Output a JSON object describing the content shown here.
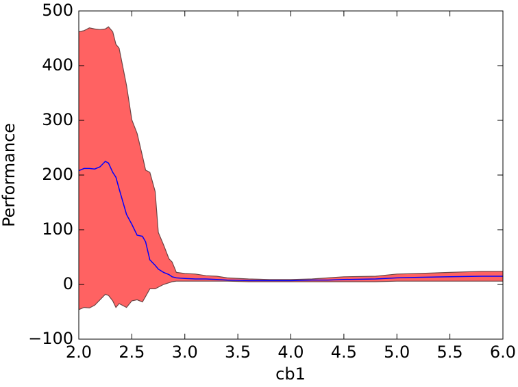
{
  "chart_data": {
    "type": "band",
    "xlabel": "cb1",
    "ylabel": "Performance",
    "x": [
      2.0,
      2.05,
      2.1,
      2.15,
      2.2,
      2.25,
      2.28,
      2.32,
      2.35,
      2.38,
      2.45,
      2.5,
      2.55,
      2.6,
      2.63,
      2.67,
      2.72,
      2.75,
      2.8,
      2.85,
      2.88,
      2.92,
      3.0,
      3.1,
      3.2,
      3.3,
      3.4,
      3.6,
      3.8,
      4.0,
      4.2,
      4.35,
      4.5,
      4.8,
      5.0,
      5.2,
      5.5,
      5.8,
      6.0
    ],
    "values": [
      208,
      212,
      212,
      211,
      215,
      225,
      222,
      205,
      196,
      175,
      128,
      110,
      90,
      88,
      78,
      45,
      35,
      28,
      22,
      18,
      14,
      12,
      11,
      10,
      10,
      9,
      8,
      7,
      7,
      7,
      8,
      8,
      9,
      10,
      12,
      13,
      14,
      15,
      15
    ],
    "upper": [
      462,
      464,
      469,
      467,
      466,
      467,
      471,
      462,
      439,
      432,
      364,
      301,
      276,
      235,
      209,
      205,
      170,
      95,
      72,
      47,
      41,
      22,
      20,
      19,
      16,
      15,
      12,
      10,
      9,
      9,
      10,
      12,
      14,
      15,
      19,
      20,
      22,
      24,
      24
    ],
    "lower": [
      -46,
      -42,
      -43,
      -38,
      -28,
      -18,
      -20,
      -30,
      -42,
      -35,
      -42,
      -30,
      -28,
      -32,
      -22,
      -8,
      -8,
      -5,
      0,
      3,
      5,
      6,
      6,
      6,
      6,
      6,
      6,
      5,
      5,
      5,
      5,
      5,
      5,
      5,
      6,
      6,
      6,
      6,
      6
    ],
    "color": "#0000ff",
    "fill_color": "#ff6262",
    "edge_color": "#6b4545",
    "xlim": [
      2.0,
      6.0
    ],
    "xticks": [
      {
        "value": 2.0,
        "label": "2.0"
      },
      {
        "value": 2.5,
        "label": "2.5"
      },
      {
        "value": 3.0,
        "label": "3.0"
      },
      {
        "value": 3.5,
        "label": "3.5"
      },
      {
        "value": 4.0,
        "label": "4.0"
      },
      {
        "value": 4.5,
        "label": "4.5"
      },
      {
        "value": 5.0,
        "label": "5.0"
      },
      {
        "value": 5.5,
        "label": "5.5"
      },
      {
        "value": 6.0,
        "label": "6.0"
      }
    ],
    "ylim": [
      -100,
      500
    ],
    "yticks": [
      {
        "value": -100,
        "label": "−100"
      },
      0,
      100,
      200,
      300,
      400,
      500
    ]
  }
}
